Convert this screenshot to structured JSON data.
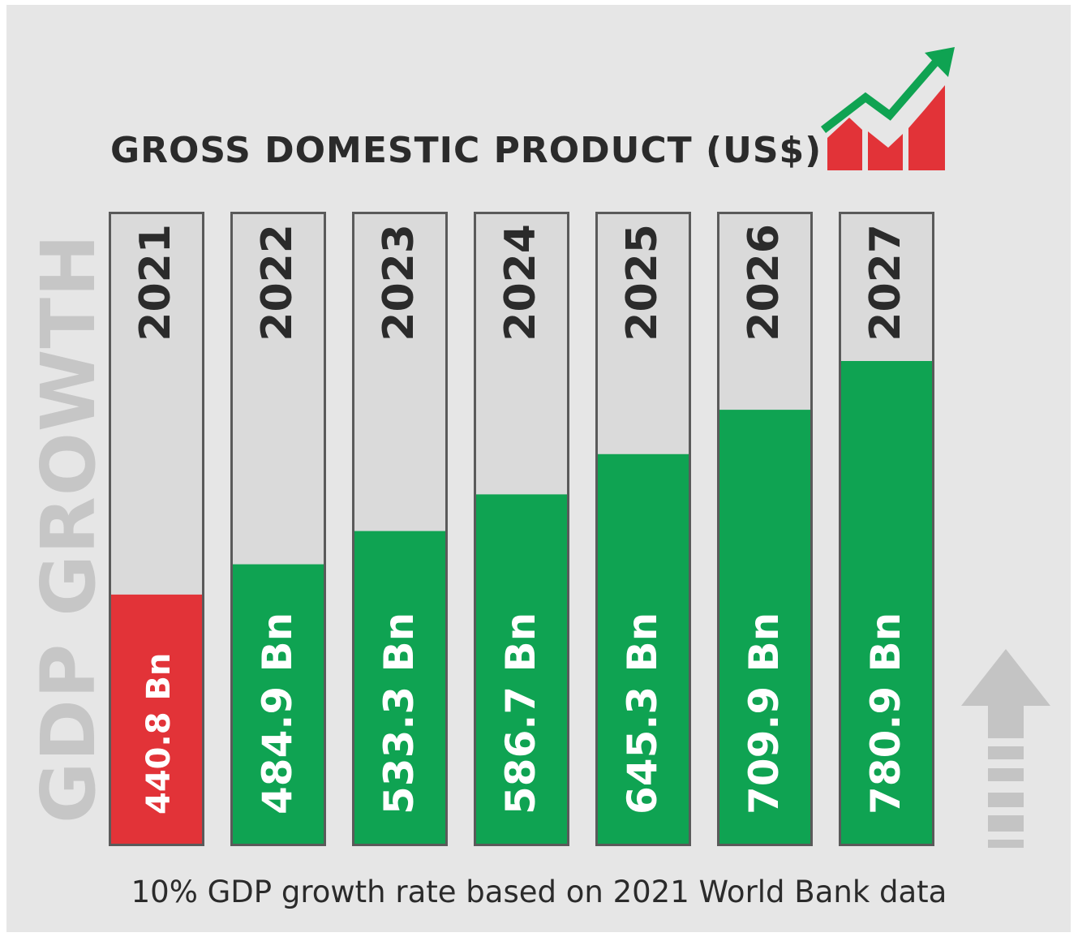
{
  "header": {
    "title": "GROSS DOMESTIC PRODUCT (US$)"
  },
  "side_label": "GDP GROWTH",
  "footnote": "10% GDP growth rate based on 2021 World Bank data",
  "icons": [
    "trend-chart-icon",
    "up-arrow-icon"
  ],
  "colors": {
    "base_year": "#e23338",
    "growth": "#0fa352",
    "track": "#dadada",
    "text_dark": "#2b2b2b",
    "side_label": "#c6c6c6"
  },
  "chart_data": {
    "type": "bar",
    "title": "GROSS DOMESTIC PRODUCT (US$)",
    "ylabel": "GDP GROWTH",
    "categories": [
      "2021",
      "2022",
      "2023",
      "2024",
      "2025",
      "2026",
      "2027"
    ],
    "values": [
      440.8,
      484.9,
      533.3,
      586.7,
      645.3,
      709.9,
      780.9
    ],
    "labels": [
      "440.8 Bn",
      "484.9 Bn",
      "533.3 Bn",
      "586.7 Bn",
      "645.3 Bn",
      "709.9 Bn",
      "780.9 Bn"
    ],
    "unit": "Bn",
    "highlight": {
      "category": "2021",
      "color": "#e23338"
    },
    "grid": false,
    "legend": "none"
  }
}
